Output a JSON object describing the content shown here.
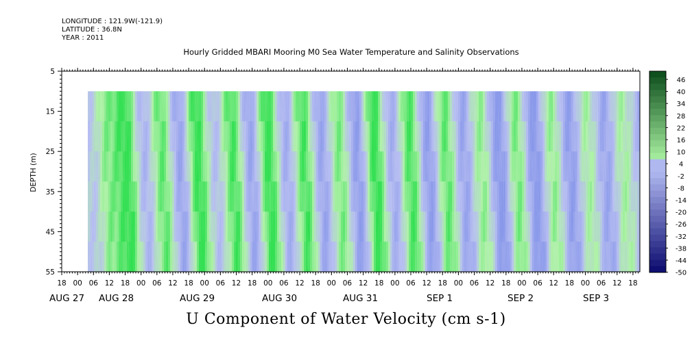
{
  "header": {
    "longitude": "LONGITUDE : 121.9W(-121.9)",
    "latitude": "LATITUDE : 36.8N",
    "year": "YEAR : 2011"
  },
  "chart_data": {
    "type": "heatmap",
    "title": "Hourly Gridded MBARI Mooring M0 Sea Water Temperature and Salinity Observations",
    "xlabel": "U Component of Water Velocity (cm s-1)",
    "ylabel": "DEPTH (m)",
    "x_hour_ticks": [
      "18",
      "00",
      "06",
      "12",
      "18",
      "00",
      "06",
      "12",
      "18",
      "00",
      "06",
      "12",
      "18",
      "00",
      "06",
      "12",
      "18",
      "00",
      "06",
      "12",
      "18",
      "00",
      "06",
      "12",
      "18",
      "00",
      "06",
      "12",
      "18",
      "00",
      "06",
      "12",
      "18",
      "00",
      "06",
      "12",
      "18"
    ],
    "x_date_labels": [
      "AUG 27",
      "AUG 28",
      "AUG 29",
      "AUG 30",
      "AUG 31",
      "SEP  1",
      "SEP  2",
      "SEP  3"
    ],
    "y_tick_labels": [
      "5",
      "15",
      "25",
      "35",
      "45",
      "55"
    ],
    "ylim": [
      55,
      5
    ],
    "data_depth_range": [
      10,
      55
    ],
    "colorbar_labels": [
      "46",
      "40",
      "34",
      "28",
      "22",
      "16",
      "10",
      "4",
      "-2",
      "-8",
      "-14",
      "-20",
      "-26",
      "-32",
      "-38",
      "-44",
      "-50"
    ],
    "colorbar_range": [
      -50,
      46
    ],
    "colors": {
      "green_bright": "#22dd44",
      "green_light": "#a8f0a0",
      "blue_light": "#b0b8f0",
      "blue_mid": "#8090e8",
      "colorbar_top": "#0a4a1a",
      "colorbar_bottom": "#0a0a6e"
    },
    "bands_u_cm_s": [
      -4,
      8,
      14,
      -8,
      10,
      -12,
      14,
      -6,
      12,
      -12,
      14,
      -10,
      12,
      -12,
      8,
      -14,
      14,
      -10,
      12,
      -14,
      10,
      -12,
      6,
      -16,
      8,
      -16,
      6,
      -14,
      4,
      -12,
      4,
      -8
    ]
  },
  "footer": {
    "axis_title": "U Component of Water Velocity (cm s-1)"
  }
}
